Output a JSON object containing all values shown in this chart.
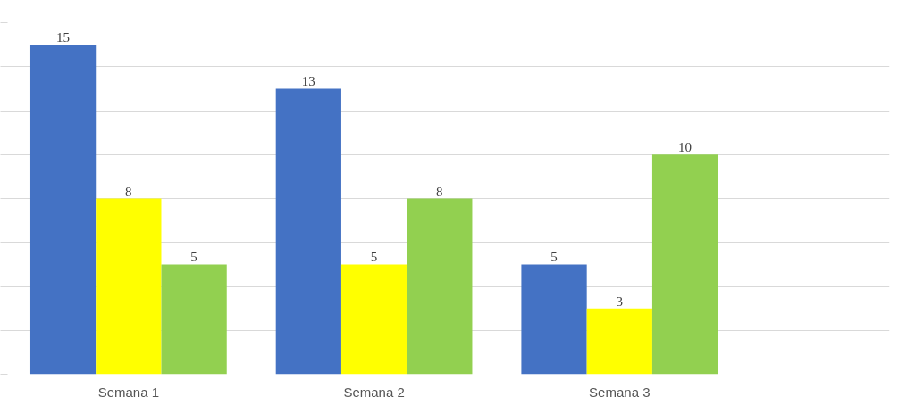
{
  "chart_data": {
    "type": "bar",
    "categories": [
      "Semana 1",
      "Semana 2",
      "Semana 3"
    ],
    "series": [
      {
        "color": "#4472c4",
        "values": [
          15,
          13,
          5
        ]
      },
      {
        "color": "#ffff00",
        "values": [
          8,
          5,
          3
        ]
      },
      {
        "color": "#92d050",
        "values": [
          5,
          8,
          10
        ]
      }
    ],
    "yticks": [
      {
        "value": 0,
        "label": null
      },
      {
        "value": 2,
        "label": null
      },
      {
        "value": 4,
        "label": null
      },
      {
        "value": 6,
        "label": null
      },
      {
        "value": 8,
        "label": null
      },
      {
        "value": 10,
        "label": null
      },
      {
        "value": 12,
        "label": null
      },
      {
        "value": 14,
        "label": null
      },
      {
        "value": 16,
        "label": null
      }
    ],
    "tick_labels": "x",
    "grid": "y",
    "data_labels": true
  }
}
